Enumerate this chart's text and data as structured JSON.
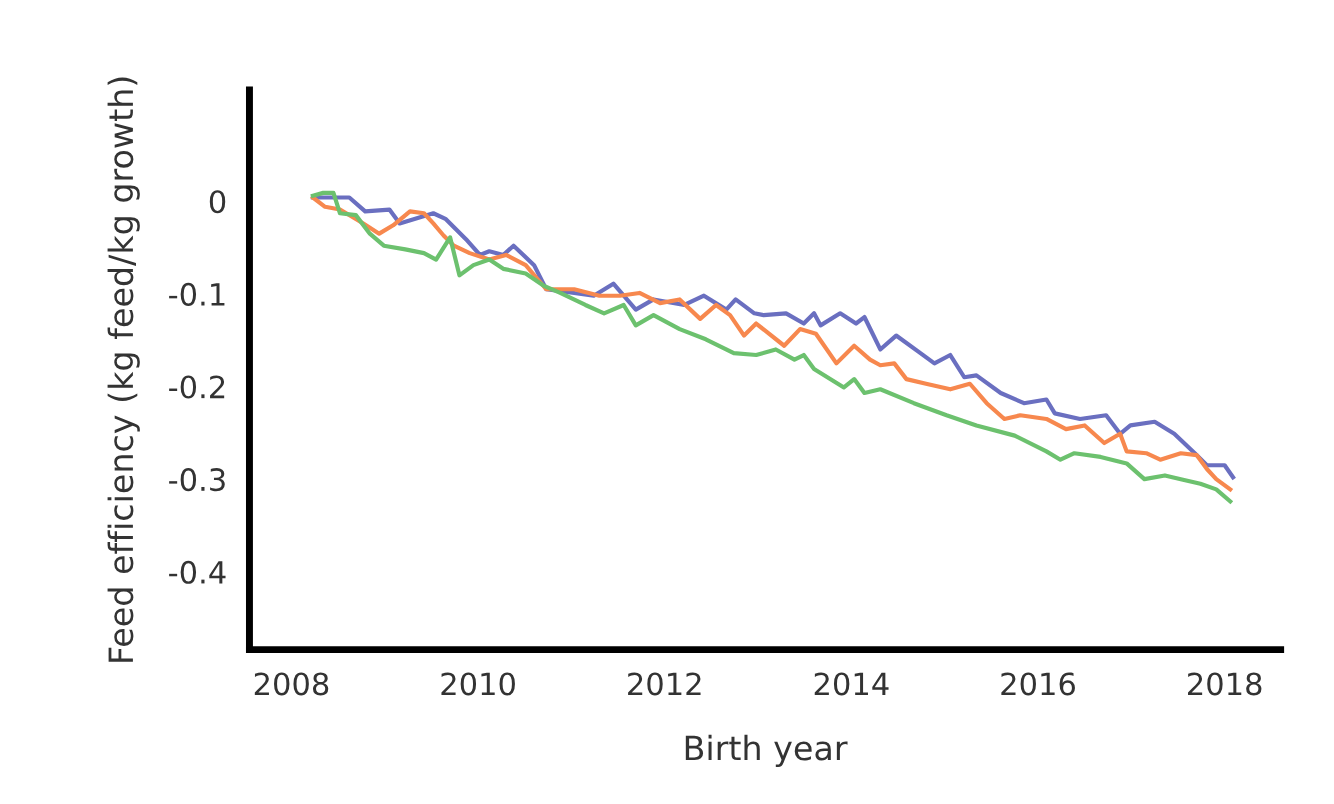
{
  "chart_data": {
    "type": "line",
    "xlabel": "Birth year",
    "ylabel": "Feed efficiency (kg feed/kg growth)",
    "xlim": [
      2007.55,
      2018.6
    ],
    "ylim": [
      -0.484,
      0.12
    ],
    "xticks": [
      2008,
      2010,
      2012,
      2014,
      2016,
      2018
    ],
    "yticks": [
      0,
      -0.1,
      -0.2,
      -0.3,
      -0.4
    ],
    "marker": "none",
    "line_style": "solid",
    "series": [
      {
        "color": "#6a6fc0",
        "x": [
          2008.23,
          2008.62,
          2008.79,
          2009.05,
          2009.16,
          2009.52,
          2009.65,
          2009.87,
          2010.02,
          2010.12,
          2010.27,
          2010.38,
          2010.6,
          2010.73,
          2011.03,
          2011.24,
          2011.45,
          2011.69,
          2011.88,
          2012.21,
          2012.42,
          2012.66,
          2012.76,
          2012.96,
          2013.06,
          2013.3,
          2013.49,
          2013.6,
          2013.67,
          2013.88,
          2014.05,
          2014.14,
          2014.31,
          2014.48,
          2014.74,
          2014.89,
          2015.06,
          2015.21,
          2015.34,
          2015.6,
          2015.85,
          2016.09,
          2016.18,
          2016.45,
          2016.73,
          2016.88,
          2016.99,
          2017.25,
          2017.46,
          2017.68,
          2017.81,
          2018.0,
          2018.09
        ],
        "values": [
          0.004,
          0.004,
          -0.011,
          -0.009,
          -0.024,
          -0.013,
          -0.019,
          -0.041,
          -0.058,
          -0.054,
          -0.058,
          -0.048,
          -0.069,
          -0.095,
          -0.099,
          -0.102,
          -0.089,
          -0.117,
          -0.106,
          -0.112,
          -0.102,
          -0.117,
          -0.106,
          -0.121,
          -0.123,
          -0.121,
          -0.132,
          -0.121,
          -0.134,
          -0.121,
          -0.132,
          -0.125,
          -0.16,
          -0.145,
          -0.164,
          -0.175,
          -0.166,
          -0.19,
          -0.188,
          -0.207,
          -0.218,
          -0.214,
          -0.229,
          -0.235,
          -0.231,
          -0.251,
          -0.242,
          -0.238,
          -0.251,
          -0.272,
          -0.285,
          -0.285,
          -0.298
        ]
      },
      {
        "color": "#f7884e",
        "x": [
          2008.23,
          2008.36,
          2008.52,
          2008.77,
          2008.94,
          2009.09,
          2009.27,
          2009.42,
          2009.52,
          2009.63,
          2009.74,
          2009.91,
          2010.12,
          2010.3,
          2010.51,
          2010.73,
          2011.03,
          2011.3,
          2011.52,
          2011.73,
          2011.95,
          2012.16,
          2012.38,
          2012.55,
          2012.7,
          2012.85,
          2012.98,
          2013.28,
          2013.45,
          2013.62,
          2013.84,
          2014.03,
          2014.2,
          2014.31,
          2014.46,
          2014.59,
          2014.8,
          2015.06,
          2015.27,
          2015.45,
          2015.64,
          2015.81,
          2016.09,
          2016.3,
          2016.5,
          2016.71,
          2016.88,
          2016.95,
          2017.16,
          2017.31,
          2017.53,
          2017.7,
          2017.81,
          2017.91,
          2018.06
        ],
        "values": [
          0.004,
          -0.006,
          -0.009,
          -0.024,
          -0.035,
          -0.026,
          -0.011,
          -0.013,
          -0.024,
          -0.037,
          -0.048,
          -0.056,
          -0.063,
          -0.058,
          -0.069,
          -0.095,
          -0.095,
          -0.102,
          -0.102,
          -0.099,
          -0.11,
          -0.106,
          -0.127,
          -0.112,
          -0.123,
          -0.145,
          -0.132,
          -0.156,
          -0.138,
          -0.143,
          -0.175,
          -0.156,
          -0.171,
          -0.177,
          -0.175,
          -0.192,
          -0.197,
          -0.203,
          -0.197,
          -0.218,
          -0.235,
          -0.231,
          -0.235,
          -0.246,
          -0.242,
          -0.261,
          -0.251,
          -0.27,
          -0.272,
          -0.279,
          -0.272,
          -0.274,
          -0.289,
          -0.3,
          -0.311
        ]
      },
      {
        "color": "#6cc16e",
        "x": [
          2008.23,
          2008.34,
          2008.45,
          2008.52,
          2008.69,
          2008.84,
          2008.99,
          2009.22,
          2009.42,
          2009.55,
          2009.7,
          2009.8,
          2009.95,
          2010.12,
          2010.27,
          2010.51,
          2010.7,
          2010.88,
          2011.15,
          2011.35,
          2011.56,
          2011.69,
          2011.88,
          2012.16,
          2012.44,
          2012.74,
          2012.98,
          2013.19,
          2013.39,
          2013.49,
          2013.6,
          2013.92,
          2014.03,
          2014.14,
          2014.31,
          2014.67,
          2015.02,
          2015.34,
          2015.75,
          2016.09,
          2016.24,
          2016.39,
          2016.67,
          2016.95,
          2017.14,
          2017.36,
          2017.53,
          2017.74,
          2017.91,
          2018.06
        ],
        "values": [
          0.006,
          0.009,
          0.009,
          -0.013,
          -0.015,
          -0.035,
          -0.048,
          -0.052,
          -0.056,
          -0.063,
          -0.039,
          -0.08,
          -0.069,
          -0.063,
          -0.073,
          -0.078,
          -0.091,
          -0.099,
          -0.112,
          -0.121,
          -0.112,
          -0.134,
          -0.123,
          -0.138,
          -0.149,
          -0.164,
          -0.166,
          -0.16,
          -0.171,
          -0.166,
          -0.181,
          -0.201,
          -0.192,
          -0.207,
          -0.203,
          -0.218,
          -0.231,
          -0.242,
          -0.253,
          -0.27,
          -0.279,
          -0.272,
          -0.276,
          -0.283,
          -0.3,
          -0.296,
          -0.3,
          -0.305,
          -0.311,
          -0.324
        ]
      }
    ]
  }
}
